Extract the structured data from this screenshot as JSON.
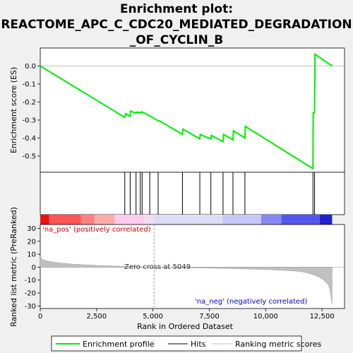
{
  "chart_data": {
    "type": "line",
    "title_lines": [
      "Enrichment plot:",
      "REACTOME_APC_C_CDC20_MEDIATED_DEGRADATION",
      "_OF_CYCLIN_B"
    ],
    "top_panel": {
      "ylabel": "Enrichment score (ES)",
      "ylim": [
        -0.59,
        0.1
      ],
      "yticks": [
        0.0,
        -0.1,
        -0.2,
        -0.3,
        -0.4,
        -0.5
      ],
      "ytick_labels": [
        "0.0",
        "-0.1",
        "-0.2",
        "-0.3",
        "-0.4",
        "-0.5"
      ],
      "series": [
        {
          "name": "Enrichment profile",
          "color": "#00ee00",
          "x": [
            0,
            3750,
            3790,
            3990,
            4000,
            4250,
            4300,
            4440,
            4460,
            4520,
            4530,
            4860,
            4880,
            5230,
            5300,
            6310,
            6330,
            7080,
            7100,
            7570,
            7590,
            8110,
            8130,
            8550,
            8570,
            9080,
            9100,
            12100,
            12110,
            12170,
            12190,
            12950
          ],
          "y": [
            0.0,
            -0.285,
            -0.265,
            -0.28,
            -0.25,
            -0.262,
            -0.255,
            -0.262,
            -0.255,
            -0.258,
            -0.255,
            -0.278,
            -0.278,
            -0.305,
            -0.305,
            -0.38,
            -0.35,
            -0.405,
            -0.38,
            -0.405,
            -0.385,
            -0.42,
            -0.38,
            -0.41,
            -0.36,
            -0.4,
            -0.335,
            -0.57,
            -0.26,
            -0.26,
            0.065,
            0.0
          ]
        }
      ]
    },
    "hits": {
      "name": "Hits",
      "positions": [
        3750,
        3990,
        4250,
        4440,
        4520,
        4860,
        5230,
        6310,
        7080,
        7570,
        8110,
        8550,
        9080,
        12100,
        12170
      ]
    },
    "bottom_panel": {
      "ylabel": "Ranked list metric (PreRanked)",
      "ylim": [
        -32,
        33
      ],
      "yticks": [
        30,
        20,
        10,
        0,
        -10,
        -20,
        -30
      ],
      "ytick_labels": [
        "30",
        "20",
        "10",
        "0",
        "-10",
        "-20",
        "-30"
      ],
      "series_name": "Ranking metric scores",
      "metric_curve": {
        "x": [
          0,
          100,
          300,
          600,
          1000,
          1500,
          2000,
          2500,
          3000,
          3500,
          4000,
          4500,
          5049,
          6000,
          7000,
          8000,
          9000,
          10000,
          11000,
          11500,
          11800,
          12100,
          12300,
          12500,
          12700,
          12800,
          12850,
          12900,
          12950
        ],
        "y": [
          8,
          6,
          4.8,
          3.9,
          3.0,
          2.3,
          1.8,
          1.4,
          1.0,
          0.7,
          0.4,
          0.2,
          0.0,
          -0.3,
          -0.6,
          -0.9,
          -1.3,
          -1.8,
          -2.6,
          -3.3,
          -4.2,
          -5.8,
          -7.0,
          -9.0,
          -12.0,
          -14.5,
          -17.0,
          -22.0,
          -29.0
        ]
      },
      "zero_cross": 5049,
      "zero_cross_label": "Zero cross at 5049",
      "pos_label": "'na_pos' (positively correlated)",
      "neg_label": "'na_neg' (negatively correlated)"
    },
    "xlabel": "Rank in Ordered Dataset",
    "xlim": [
      0,
      13500
    ],
    "xticks": [
      0,
      2500,
      5000,
      7500,
      10000,
      12500
    ],
    "xtick_labels": [
      "0",
      "2,500",
      "5,000",
      "7,500",
      "10,000",
      "12,500"
    ],
    "n_genes": 12950,
    "color_bar": {
      "breaks": [
        0,
        400,
        1800,
        2400,
        3300,
        4600,
        5049,
        8100,
        9800,
        10700,
        12400,
        12950
      ],
      "colors": [
        "#ee1111",
        "#ff5555",
        "#ff8080",
        "#ffaaaa",
        "#ffccee",
        "#f0ddf0",
        "#dcdcf5",
        "#c8c8f8",
        "#8888f5",
        "#5555ee",
        "#2222cc"
      ]
    },
    "legend": [
      {
        "label": "Enrichment profile",
        "color": "#00ee00"
      },
      {
        "label": "Hits",
        "color": "#000000"
      },
      {
        "label": "Ranking metric scores",
        "color": "#c0c0c0"
      }
    ],
    "grid": false,
    "legend_position": "bottom"
  }
}
